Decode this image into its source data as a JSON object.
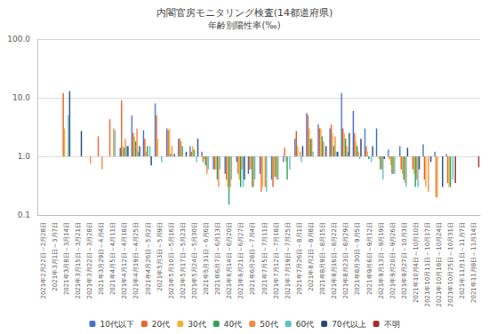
{
  "chart_data": {
    "type": "bar",
    "title": "内閣官房モニタリング検査(14都道府県)",
    "subtitle": "年齢別陽性率(‰)",
    "categories": [
      "2021年2月22日～2月28日",
      "2021年3月1日～3月7日",
      "2021年3月8日～3月14日",
      "2021年3月15日～3月21日",
      "2021年3月22日～3月28日",
      "2021年3月29日～4月4日",
      "2021年4月5日～4月11日",
      "2021年4月12日～4月18日",
      "2021年4月19日～4月25日",
      "2021年4月26日～5月2日",
      "2021年5月3日～5月9日",
      "2021年5月10日～5月16日",
      "2021年5月17日～5月23日",
      "2021年5月24日～5月30日",
      "2021年5月31日～6月6日",
      "2021年6月7日～6月13日",
      "2021年6月14日～6月20日",
      "2021年6月21日～6月27日",
      "2021年6月28日～7月4日",
      "2021年7月5日～7月11日",
      "2021年7月12日～7月18日",
      "2021年7月19日～7月25日",
      "2021年7月26日～8月1日",
      "2021年8月2日～8月8日",
      "2021年8月9日～8月15日",
      "2021年8月16日～8月22日",
      "2021年8月23日～8月29日",
      "2021年8月30日～9月5日",
      "2021年9月6日～9月12日",
      "2021年9月13日～9月19日",
      "2021年9月20日～9月26日",
      "2021年9月27日～10月3日",
      "2021年10月4日～10月10日",
      "2021年10月11日～10月17日",
      "2021年10月18日～10月24日",
      "2021年10月25日～10月31日",
      "2021年11月1日～11月7日",
      "2021年11月8日～11月14日"
    ],
    "series": [
      {
        "name": "10代以下",
        "color": "#4472c4",
        "values": [
          null,
          null,
          null,
          null,
          null,
          null,
          null,
          1.4,
          5.0,
          2.8,
          8.0,
          3.0,
          2.0,
          1.5,
          1.2,
          0.6,
          0.5,
          0.8,
          0.5,
          0.5,
          0.4,
          0.8,
          2.0,
          5.5,
          3.5,
          3.0,
          12,
          6.0,
          3.0,
          3.0,
          1.3,
          1.5,
          1.0,
          1.6,
          1.2,
          1.1,
          null,
          null
        ]
      },
      {
        "name": "20代",
        "color": "#e8622c",
        "values": [
          null,
          null,
          12,
          null,
          null,
          2.2,
          4.3,
          9.0,
          2.5,
          2.0,
          5.0,
          2.8,
          2.0,
          1.2,
          0.8,
          0.6,
          0.4,
          0.5,
          0.6,
          0.25,
          0.3,
          1.4,
          2.7,
          5.0,
          3.0,
          3.5,
          3.0,
          2.5,
          1.5,
          1.0,
          0.9,
          0.6,
          0.6,
          0.4,
          0.2,
          0.35,
          null,
          null
        ]
      },
      {
        "name": "30代",
        "color": "#f2b134",
        "values": [
          null,
          null,
          3,
          null,
          null,
          1.0,
          null,
          1.5,
          2.2,
          1.2,
          2.0,
          3.0,
          1.8,
          1.5,
          0.9,
          0.6,
          0.3,
          0.4,
          0.6,
          0.3,
          0.45,
          0.8,
          1.5,
          3.0,
          3.0,
          2.5,
          2.5,
          1.8,
          1.2,
          0.9,
          0.7,
          0.5,
          0.5,
          0.3,
          0.2,
          0.3,
          null,
          null
        ]
      },
      {
        "name": "40代",
        "color": "#2e9e5b",
        "values": [
          null,
          null,
          null,
          1.0,
          null,
          null,
          null,
          1.4,
          1.8,
          1.5,
          null,
          1.1,
          1.5,
          1.3,
          0.7,
          0.4,
          0.15,
          0.3,
          0.3,
          null,
          0.45,
          0.4,
          1.0,
          2.0,
          2.2,
          1.5,
          2.0,
          1.5,
          0.9,
          0.6,
          0.5,
          0.4,
          0.3,
          null,
          null,
          0.3,
          null,
          null
        ]
      },
      {
        "name": "50代",
        "color": "#f08a3c",
        "values": [
          null,
          null,
          null,
          null,
          0.75,
          0.6,
          3.0,
          2.0,
          3.0,
          1.0,
          null,
          1.5,
          1.0,
          1.0,
          0.5,
          0.3,
          0.3,
          0.6,
          0.3,
          0.3,
          0.4,
          1.0,
          1.2,
          2.0,
          1.8,
          2.2,
          1.5,
          1.2,
          1.0,
          0.6,
          0.5,
          0.35,
          0.4,
          0.25,
          null,
          null,
          null,
          null
        ]
      },
      {
        "name": "60代",
        "color": "#5bc0c8",
        "values": [
          null,
          null,
          5,
          null,
          null,
          null,
          2.8,
          1.5,
          1.2,
          1.5,
          0.8,
          1.0,
          1.0,
          0.8,
          0.6,
          0.6,
          0.4,
          0.3,
          0.4,
          0.25,
          0.4,
          0.6,
          0.8,
          1.2,
          1.0,
          1.2,
          1.2,
          0.9,
          0.8,
          0.4,
          0.5,
          0.3,
          0.3,
          null,
          null,
          0.4,
          null,
          null
        ]
      },
      {
        "name": "70代以上",
        "color": "#264478",
        "values": [
          null,
          null,
          13,
          2.7,
          null,
          null,
          null,
          1.5,
          1.5,
          0.7,
          null,
          1.1,
          1.2,
          2.0,
          1.0,
          null,
          null,
          0.4,
          null,
          null,
          null,
          null,
          1.5,
          1.0,
          1.5,
          1.2,
          2.5,
          2.0,
          1.5,
          0.9,
          1.0,
          1.4,
          0.6,
          0.8,
          0.3,
          null,
          null,
          null
        ]
      },
      {
        "name": "不明",
        "color": "#9e2a2b",
        "values": [
          null,
          null,
          null,
          null,
          null,
          null,
          null,
          null,
          null,
          null,
          null,
          null,
          null,
          null,
          null,
          null,
          null,
          null,
          null,
          null,
          null,
          null,
          null,
          null,
          null,
          null,
          null,
          null,
          null,
          null,
          null,
          null,
          null,
          null,
          null,
          0.35,
          null,
          0.65
        ]
      }
    ],
    "ylim": [
      0.1,
      100
    ],
    "yticks": [
      0.1,
      {
        "value": 1,
        "label": "1.0"
      },
      {
        "value": 10,
        "label": "10.0"
      },
      {
        "value": 100,
        "label": "100.0"
      }
    ],
    "log": "y",
    "grid": true,
    "legend": "bottom"
  }
}
